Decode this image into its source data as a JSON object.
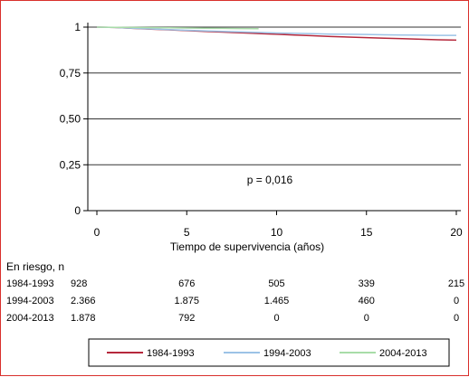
{
  "chart_data": {
    "type": "line",
    "title": "",
    "xlabel": "Tiempo de supervivencia (años)",
    "ylabel": "",
    "xlim": [
      0,
      20
    ],
    "ylim": [
      0,
      1
    ],
    "x_ticks": [
      0,
      5,
      10,
      15,
      20
    ],
    "y_ticks": [
      0,
      0.25,
      0.5,
      0.75,
      1
    ],
    "x_tick_labels": [
      "0",
      "5",
      "10",
      "15",
      "20"
    ],
    "y_tick_labels": [
      "0",
      "0,25",
      "0,50",
      "0,75",
      "1"
    ],
    "grid": "horizontal",
    "annotation": "p = 0,016",
    "series": [
      {
        "name": "1984-1993",
        "color": "#b5283c",
        "x": [
          0,
          1,
          2,
          3,
          4,
          5,
          6,
          7,
          8,
          9,
          10,
          11,
          12,
          13,
          14,
          15,
          16,
          17,
          18,
          19,
          20
        ],
        "y": [
          1,
          0.998,
          0.993,
          0.989,
          0.985,
          0.981,
          0.977,
          0.973,
          0.969,
          0.965,
          0.961,
          0.957,
          0.953,
          0.949,
          0.946,
          0.943,
          0.94,
          0.937,
          0.934,
          0.931,
          0.929
        ]
      },
      {
        "name": "1994-2003",
        "color": "#9cc3e6",
        "x": [
          0,
          1,
          2,
          3,
          4,
          5,
          6,
          7,
          8,
          9,
          10,
          11,
          12,
          13,
          14,
          15,
          16,
          17,
          18,
          19,
          20
        ],
        "y": [
          1,
          0.998,
          0.994,
          0.99,
          0.986,
          0.983,
          0.98,
          0.977,
          0.974,
          0.971,
          0.968,
          0.966,
          0.964,
          0.962,
          0.961,
          0.96,
          0.958,
          0.957,
          0.956,
          0.955,
          0.955
        ]
      },
      {
        "name": "2004-2013",
        "color": "#a8dca8",
        "x": [
          0,
          1,
          2,
          3,
          4,
          5,
          6,
          7,
          8,
          9
        ],
        "y": [
          1,
          0.999,
          0.998,
          0.997,
          0.996,
          0.995,
          0.994,
          0.993,
          0.992,
          0.991
        ]
      }
    ],
    "at_risk": {
      "label": "En riesgo, n",
      "time_points": [
        0,
        5,
        10,
        15,
        20
      ],
      "rows": [
        {
          "period": "1984-1993",
          "values": [
            "928",
            "676",
            "505",
            "339",
            "215"
          ]
        },
        {
          "period": "1994-2003",
          "values": [
            "2.366",
            "1.875",
            "1.465",
            "460",
            "0"
          ]
        },
        {
          "period": "2004-2013",
          "values": [
            "1.878",
            "792",
            "0",
            "0",
            "0"
          ]
        }
      ]
    },
    "legend_position": "bottom"
  }
}
